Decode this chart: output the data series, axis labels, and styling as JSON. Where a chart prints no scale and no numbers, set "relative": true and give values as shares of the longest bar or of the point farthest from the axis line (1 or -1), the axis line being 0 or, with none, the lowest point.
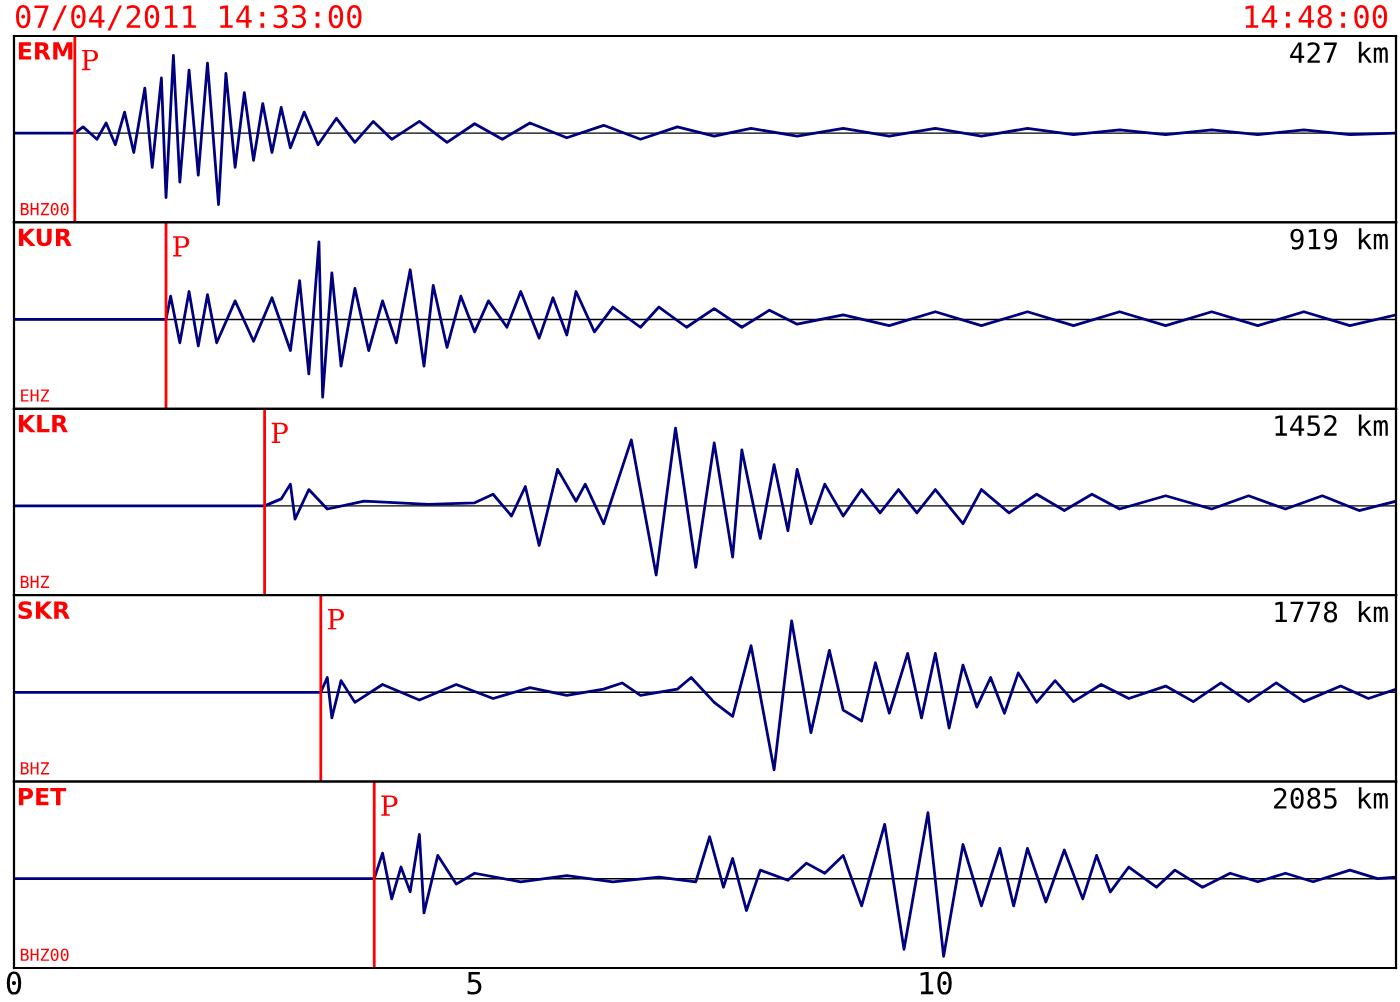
{
  "chart_data": [
    {
      "type": "line",
      "relative": true,
      "title": "ERM",
      "subtitle": "427 km",
      "annotations": [
        "07/04/2011 14:33:00",
        "14:48:00",
        "BHZ00"
      ],
      "xlim": [
        0,
        15
      ],
      "tick_labels": false,
      "ref_lines": [
        {
          "axis": "x",
          "value": 0.66,
          "label": "P",
          "color": "#ff0000"
        }
      ],
      "series": [
        {
          "color": "#00007f",
          "x": [
            0,
            0.66,
            0.75,
            0.9,
            1.0,
            1.1,
            1.2,
            1.3,
            1.42,
            1.5,
            1.6,
            1.65,
            1.73,
            1.8,
            1.9,
            2.0,
            2.1,
            2.22,
            2.3,
            2.4,
            2.5,
            2.6,
            2.7,
            2.8,
            2.9,
            3.0,
            3.15,
            3.3,
            3.5,
            3.7,
            3.9,
            4.1,
            4.4,
            4.7,
            5.0,
            5.3,
            5.6,
            6.0,
            6.4,
            6.8,
            7.2,
            7.6,
            8.0,
            8.5,
            9.0,
            9.5,
            10,
            10.5,
            11,
            11.5,
            12,
            12.5,
            13,
            13.5,
            14,
            14.5,
            15
          ],
          "values": [
            0,
            0,
            0.08,
            -0.08,
            0.13,
            -0.15,
            0.27,
            -0.25,
            0.58,
            -0.44,
            0.71,
            -0.83,
            1,
            -0.63,
            0.81,
            -0.54,
            0.9,
            -0.92,
            0.77,
            -0.44,
            0.52,
            -0.35,
            0.38,
            -0.25,
            0.33,
            -0.19,
            0.27,
            -0.15,
            0.19,
            -0.12,
            0.15,
            -0.08,
            0.15,
            -0.12,
            0.12,
            -0.08,
            0.13,
            -0.06,
            0.1,
            -0.08,
            0.08,
            -0.04,
            0.06,
            -0.04,
            0.06,
            -0.04,
            0.06,
            -0.04,
            0.06,
            -0.02,
            0.04,
            -0.02,
            0.04,
            -0.02,
            0.04,
            -0.02,
            0
          ]
        }
      ]
    },
    {
      "type": "line",
      "relative": true,
      "title": "KUR",
      "subtitle": "919 km",
      "annotations": [
        "EHZ"
      ],
      "xlim": [
        0,
        15
      ],
      "tick_labels": false,
      "ref_lines": [
        {
          "axis": "x",
          "value": 1.65,
          "label": "P",
          "color": "#ff0000"
        }
      ],
      "series": [
        {
          "color": "#00007f",
          "x": [
            0,
            1.65,
            1.7,
            1.8,
            1.9,
            2.0,
            2.1,
            2.2,
            2.4,
            2.6,
            2.8,
            3.0,
            3.1,
            3.2,
            3.31,
            3.35,
            3.45,
            3.55,
            3.7,
            3.85,
            4.0,
            4.15,
            4.3,
            4.45,
            4.55,
            4.7,
            4.85,
            5.0,
            5.15,
            5.35,
            5.5,
            5.7,
            5.85,
            6.0,
            6.1,
            6.3,
            6.5,
            6.8,
            7.0,
            7.3,
            7.6,
            7.9,
            8.2,
            8.5,
            9.0,
            9.5,
            10.0,
            10.5,
            11,
            11.5,
            12,
            12.5,
            13,
            13.5,
            14,
            14.5,
            15
          ],
          "values": [
            0,
            0,
            0.3,
            -0.3,
            0.36,
            -0.34,
            0.32,
            -0.3,
            0.24,
            -0.28,
            0.28,
            -0.4,
            0.5,
            -0.7,
            1,
            -1,
            0.6,
            -0.6,
            0.4,
            -0.4,
            0.24,
            -0.3,
            0.64,
            -0.6,
            0.44,
            -0.36,
            0.3,
            -0.16,
            0.24,
            -0.1,
            0.36,
            -0.24,
            0.28,
            -0.2,
            0.36,
            -0.16,
            0.16,
            -0.1,
            0.16,
            -0.1,
            0.14,
            -0.1,
            0.12,
            -0.06,
            0.06,
            -0.08,
            0.1,
            -0.08,
            0.1,
            -0.08,
            0.1,
            -0.08,
            0.1,
            -0.08,
            0.1,
            -0.08,
            0.06
          ]
        }
      ]
    },
    {
      "type": "line",
      "relative": true,
      "title": "KLR",
      "subtitle": "1452 km",
      "annotations": [
        "BHZ"
      ],
      "xlim": [
        0,
        15
      ],
      "tick_labels": false,
      "ref_lines": [
        {
          "axis": "x",
          "value": 2.72,
          "label": "P",
          "color": "#ff0000"
        }
      ],
      "series": [
        {
          "color": "#00007f",
          "x": [
            0,
            2.72,
            2.9,
            3.0,
            3.05,
            3.2,
            3.4,
            3.8,
            4.5,
            5.0,
            5.2,
            5.4,
            5.55,
            5.7,
            5.9,
            6.1,
            6.2,
            6.4,
            6.7,
            6.97,
            7.18,
            7.4,
            7.6,
            7.8,
            7.9,
            8.1,
            8.25,
            8.4,
            8.5,
            8.65,
            8.8,
            9.0,
            9.2,
            9.4,
            9.6,
            9.8,
            10.0,
            10.3,
            10.5,
            10.8,
            11.1,
            11.4,
            11.7,
            12.0,
            12.5,
            13.0,
            13.4,
            13.8,
            14.2,
            14.6,
            15
          ],
          "values": [
            0,
            0,
            0.09,
            0.28,
            -0.17,
            0.21,
            -0.04,
            0.06,
            0.02,
            0.04,
            0.15,
            -0.13,
            0.25,
            -0.51,
            0.47,
            0.06,
            0.28,
            -0.23,
            0.85,
            -0.89,
            1,
            -0.79,
            0.81,
            -0.66,
            0.72,
            -0.42,
            0.53,
            -0.32,
            0.47,
            -0.23,
            0.28,
            -0.13,
            0.21,
            -0.09,
            0.21,
            -0.09,
            0.21,
            -0.23,
            0.21,
            -0.09,
            0.15,
            -0.06,
            0.15,
            -0.04,
            0.13,
            -0.04,
            0.13,
            -0.04,
            0.13,
            -0.06,
            0.06
          ]
        }
      ]
    },
    {
      "type": "line",
      "relative": true,
      "title": "SKR",
      "subtitle": "1778 km",
      "annotations": [
        "BHZ"
      ],
      "xlim": [
        0,
        15
      ],
      "tick_labels": false,
      "ref_lines": [
        {
          "axis": "x",
          "value": 3.33,
          "label": "P",
          "color": "#ff0000"
        }
      ],
      "series": [
        {
          "color": "#00007f",
          "x": [
            0,
            3.33,
            3.4,
            3.45,
            3.55,
            3.7,
            4.0,
            4.4,
            4.8,
            5.2,
            5.6,
            6.0,
            6.4,
            6.6,
            6.8,
            7.2,
            7.35,
            7.6,
            7.8,
            8.0,
            8.25,
            8.44,
            8.65,
            8.85,
            9.0,
            9.2,
            9.35,
            9.5,
            9.7,
            9.85,
            10.0,
            10.15,
            10.3,
            10.45,
            10.6,
            10.75,
            10.9,
            11.1,
            11.3,
            11.5,
            11.8,
            12.1,
            12.5,
            12.8,
            13.1,
            13.4,
            13.7,
            14.0,
            14.4,
            14.7,
            15
          ],
          "values": [
            0,
            0,
            0.19,
            -0.33,
            0.15,
            -0.13,
            0.1,
            -0.1,
            0.1,
            -0.08,
            0.06,
            -0.04,
            0.04,
            0.12,
            -0.04,
            0.04,
            0.19,
            -0.13,
            -0.31,
            0.6,
            -1,
            0.92,
            -0.52,
            0.54,
            -0.23,
            -0.37,
            0.38,
            -0.27,
            0.5,
            -0.33,
            0.5,
            -0.46,
            0.35,
            -0.19,
            0.19,
            -0.27,
            0.25,
            -0.13,
            0.15,
            -0.12,
            0.1,
            -0.08,
            0.08,
            -0.12,
            0.12,
            -0.12,
            0.12,
            -0.12,
            0.08,
            -0.08,
            0.04
          ]
        }
      ]
    },
    {
      "type": "line",
      "relative": true,
      "title": "PET",
      "subtitle": "2085 km",
      "annotations": [
        "BHZ00"
      ],
      "xlim": [
        0,
        15
      ],
      "xticks": [
        0,
        5,
        10
      ],
      "tick_labels": "x",
      "ref_lines": [
        {
          "axis": "x",
          "value": 3.91,
          "label": "P",
          "color": "#ff0000"
        }
      ],
      "series": [
        {
          "color": "#00007f",
          "x": [
            0,
            3.91,
            4.0,
            4.1,
            4.2,
            4.3,
            4.4,
            4.45,
            4.6,
            4.8,
            5.0,
            5.5,
            6.0,
            6.5,
            7.0,
            7.4,
            7.55,
            7.7,
            7.8,
            7.95,
            8.1,
            8.4,
            8.6,
            8.8,
            9.0,
            9.2,
            9.45,
            9.66,
            9.92,
            10.09,
            10.3,
            10.5,
            10.7,
            10.85,
            11.0,
            11.2,
            11.4,
            11.6,
            11.75,
            11.9,
            12.1,
            12.4,
            12.6,
            12.9,
            13.2,
            13.5,
            13.8,
            14.1,
            14.5,
            14.8,
            15
          ],
          "values": [
            0,
            0,
            0.33,
            -0.26,
            0.15,
            -0.17,
            0.57,
            -0.44,
            0.3,
            -0.07,
            0.07,
            -0.04,
            0.04,
            -0.04,
            0.02,
            -0.04,
            0.54,
            -0.11,
            0.26,
            -0.41,
            0.11,
            -0.02,
            0.2,
            0.07,
            0.3,
            -0.35,
            0.7,
            -0.91,
            0.85,
            -1,
            0.44,
            -0.35,
            0.39,
            -0.35,
            0.39,
            -0.3,
            0.37,
            -0.26,
            0.3,
            -0.17,
            0.15,
            -0.11,
            0.11,
            -0.11,
            0.07,
            -0.04,
            0.07,
            -0.04,
            0.11,
            0,
            0.02
          ]
        }
      ]
    }
  ]
}
